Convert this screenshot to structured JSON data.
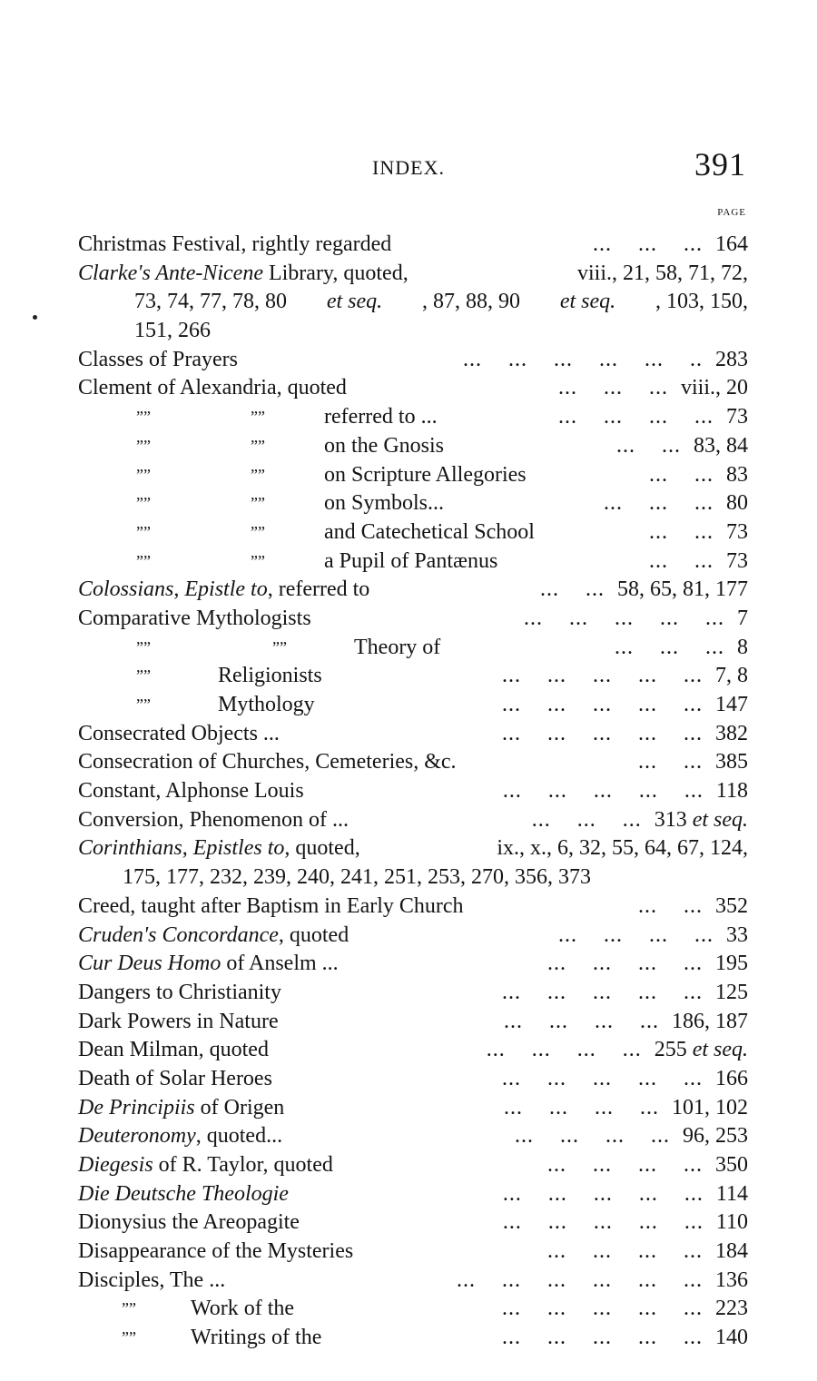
{
  "header": {
    "title": "INDEX.",
    "page_number": "391",
    "page_column_label": "PAGE"
  },
  "entries": [
    {
      "label": [
        {
          "t": "Christmas Festival, rightly regarded"
        }
      ],
      "dots": "... ... ...",
      "pages": [
        {
          "t": "164"
        }
      ]
    },
    {
      "label": [
        {
          "t": "Clarke's Ante-Nicene",
          "i": true
        },
        {
          "t": " Library, quoted,"
        }
      ],
      "pages": [
        {
          "t": "viii., 21, 58, 71, 72,"
        }
      ],
      "cont": [
        [
          {
            "t": "73, 74, 77, 78, 80 "
          },
          {
            "t": "et seq.",
            "i": true
          },
          {
            "t": ", 87, 88, 90 "
          },
          {
            "t": "et seq.",
            "i": true
          },
          {
            "t": ", 103, 150,"
          }
        ],
        [
          {
            "t": "151, 266"
          }
        ]
      ],
      "cont_indent": "a"
    },
    {
      "label": [
        {
          "t": "Classes of Prayers"
        }
      ],
      "dots": "... ... ... ... ... ..",
      "pages": [
        {
          "t": "283"
        }
      ]
    },
    {
      "label": [
        {
          "t": "Clement of Alexandria, quoted"
        }
      ],
      "dots": "... ... ...",
      "pages": [
        {
          "t": "viii., 20"
        }
      ]
    },
    {
      "ditto": [
        "”",
        "”"
      ],
      "dstyle": "a",
      "label": [
        {
          "t": "referred to ..."
        }
      ],
      "dots": "... ... ... ...",
      "pages": [
        {
          "t": "73"
        }
      ]
    },
    {
      "ditto": [
        "”",
        "”"
      ],
      "dstyle": "a",
      "label": [
        {
          "t": "on the Gnosis"
        }
      ],
      "dots": "... ...",
      "pages": [
        {
          "t": "83, 84"
        }
      ]
    },
    {
      "ditto": [
        "”",
        "”"
      ],
      "dstyle": "a",
      "label": [
        {
          "t": "on Scripture Allegories"
        }
      ],
      "dots": "... ...",
      "pages": [
        {
          "t": "83"
        }
      ]
    },
    {
      "ditto": [
        "”",
        "”"
      ],
      "dstyle": "a",
      "label": [
        {
          "t": "on Symbols..."
        }
      ],
      "dots": "... ... ...",
      "pages": [
        {
          "t": "80"
        }
      ]
    },
    {
      "ditto": [
        "”",
        "”"
      ],
      "dstyle": "a",
      "label": [
        {
          "t": "and Catechetical School"
        }
      ],
      "dots": "... ...",
      "pages": [
        {
          "t": "73"
        }
      ]
    },
    {
      "ditto": [
        "”",
        "”"
      ],
      "dstyle": "a",
      "label": [
        {
          "t": "a Pupil of Pantænus"
        }
      ],
      "dots": "... ...",
      "pages": [
        {
          "t": "73"
        }
      ]
    },
    {
      "label": [
        {
          "t": "Colossians",
          "i": true
        },
        {
          "t": ", "
        },
        {
          "t": "Epistle to",
          "i": true
        },
        {
          "t": ", referred to"
        }
      ],
      "dots": "... ...",
      "pages": [
        {
          "t": "58, 65, 81, 177"
        }
      ]
    },
    {
      "label": [
        {
          "t": "Comparative Mythologists"
        }
      ],
      "dots": "... ... ... ... ...",
      "pages": [
        {
          "t": "7"
        }
      ]
    },
    {
      "ditto": [
        "”",
        "”"
      ],
      "dstyle": "b",
      "label": [
        {
          "t": "Theory of"
        }
      ],
      "dots": "... ... ...",
      "pages": [
        {
          "t": "8"
        }
      ]
    },
    {
      "ditto": [
        "”"
      ],
      "dstyle": "c",
      "label": [
        {
          "t": "Religionists"
        }
      ],
      "dots": "... ... ... ... ...",
      "pages": [
        {
          "t": "7, 8"
        }
      ]
    },
    {
      "ditto": [
        "”"
      ],
      "dstyle": "c",
      "label": [
        {
          "t": "Mythology"
        }
      ],
      "dots": "... ... ... ... ...",
      "pages": [
        {
          "t": "147"
        }
      ]
    },
    {
      "label": [
        {
          "t": "Consecrated Objects ..."
        }
      ],
      "dots": "... ... ... ... ...",
      "pages": [
        {
          "t": "382"
        }
      ]
    },
    {
      "label": [
        {
          "t": "Consecration of Churches, Cemeteries, &c."
        }
      ],
      "dots": "... ...",
      "pages": [
        {
          "t": "385"
        }
      ]
    },
    {
      "label": [
        {
          "t": "Constant, Alphonse Louis"
        }
      ],
      "dots": "... ... ... ... ...",
      "pages": [
        {
          "t": "118"
        }
      ]
    },
    {
      "label": [
        {
          "t": "Conversion, Phenomenon of ..."
        }
      ],
      "dots": "... ... ...",
      "pages": [
        {
          "t": "313 "
        },
        {
          "t": "et seq.",
          "i": true
        }
      ]
    },
    {
      "label": [
        {
          "t": "Corinthians",
          "i": true
        },
        {
          "t": ", "
        },
        {
          "t": "Epistles to",
          "i": true
        },
        {
          "t": ", quoted,"
        }
      ],
      "pages": [
        {
          "t": "ix., x., 6, 32, 55, 64, 67, 124,"
        }
      ],
      "cont": [
        [
          {
            "t": "175, 177, 232, 239, 240, 241, 251, 253, 270, 356, 373"
          }
        ]
      ],
      "cont_indent": "b"
    },
    {
      "label": [
        {
          "t": "Creed, taught after Baptism in Early Church"
        }
      ],
      "dots": "... ...",
      "pages": [
        {
          "t": "352"
        }
      ]
    },
    {
      "label": [
        {
          "t": "Cruden's Concordance",
          "i": true
        },
        {
          "t": ", quoted"
        }
      ],
      "dots": "... ... ... ...",
      "pages": [
        {
          "t": "33"
        }
      ]
    },
    {
      "label": [
        {
          "t": "Cur Deus Homo",
          "i": true
        },
        {
          "t": " of Anselm ..."
        }
      ],
      "dots": "... ... ... ...",
      "pages": [
        {
          "t": "195"
        }
      ]
    },
    {
      "label": [
        {
          "t": "Dangers to Christianity"
        }
      ],
      "dots": "... ... ... ... ...",
      "pages": [
        {
          "t": "125"
        }
      ]
    },
    {
      "label": [
        {
          "t": "Dark Powers in Nature"
        }
      ],
      "dots": "... ... ... ...",
      "pages": [
        {
          "t": "186, 187"
        }
      ]
    },
    {
      "label": [
        {
          "t": "Dean Milman, quoted"
        }
      ],
      "dots": "... ... ... ...",
      "pages": [
        {
          "t": "255 "
        },
        {
          "t": "et seq.",
          "i": true
        }
      ]
    },
    {
      "label": [
        {
          "t": "Death of Solar Heroes"
        }
      ],
      "dots": "... ... ... ... ...",
      "pages": [
        {
          "t": "166"
        }
      ]
    },
    {
      "label": [
        {
          "t": "De Principiis",
          "i": true
        },
        {
          "t": " of Origen"
        }
      ],
      "dots": "... ... ... ...",
      "pages": [
        {
          "t": "101, 102"
        }
      ]
    },
    {
      "label": [
        {
          "t": "Deuteronomy",
          "i": true
        },
        {
          "t": ", quoted..."
        }
      ],
      "dots": "... ... ... ...",
      "pages": [
        {
          "t": "96, 253"
        }
      ]
    },
    {
      "label": [
        {
          "t": "Diegesis",
          "i": true
        },
        {
          "t": " of R. Taylor, quoted"
        }
      ],
      "dots": "... ... ... ...",
      "pages": [
        {
          "t": "350"
        }
      ]
    },
    {
      "label": [
        {
          "t": "Die Deutsche Theologie",
          "i": true
        }
      ],
      "dots": "... ... ... ... ...",
      "pages": [
        {
          "t": "114"
        }
      ]
    },
    {
      "label": [
        {
          "t": "Dionysius the Areopagite"
        }
      ],
      "dots": "... ... ... ... ...",
      "pages": [
        {
          "t": "110"
        }
      ]
    },
    {
      "label": [
        {
          "t": "Disappearance of the Mysteries"
        }
      ],
      "dots": "... ... ... ...",
      "pages": [
        {
          "t": "184"
        }
      ]
    },
    {
      "label": [
        {
          "t": "Disciples, The ..."
        }
      ],
      "dots": "... ... ... ... ... ...",
      "pages": [
        {
          "t": "136"
        }
      ]
    },
    {
      "ditto": [
        "”"
      ],
      "dstyle": "d",
      "label": [
        {
          "t": "Work of the"
        }
      ],
      "dots": "... ... ... ... ...",
      "pages": [
        {
          "t": "223"
        }
      ]
    },
    {
      "ditto": [
        "”"
      ],
      "dstyle": "d",
      "label": [
        {
          "t": "Writings of the"
        }
      ],
      "dots": "... ... ... ... ...",
      "pages": [
        {
          "t": "140"
        }
      ]
    }
  ]
}
